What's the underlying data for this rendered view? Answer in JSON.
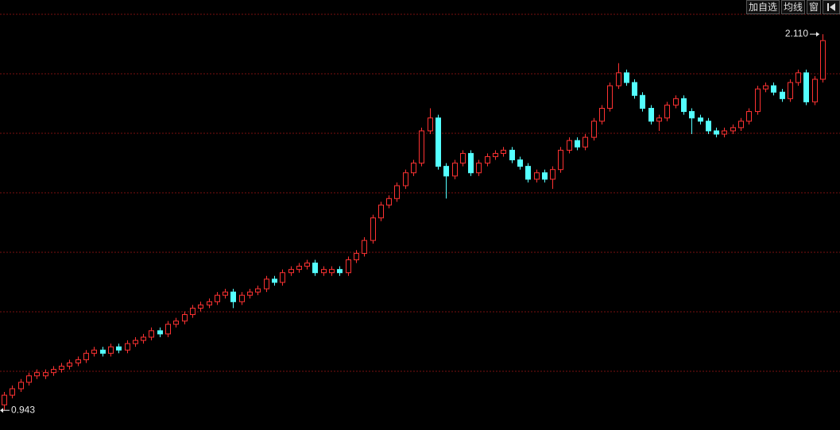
{
  "toolbar": {
    "add_watchlist": "加自选",
    "moving_average": "均线",
    "window": "窗"
  },
  "chart_data": {
    "type": "candlestick",
    "grid": true,
    "up_color": "#ff3232",
    "down_color": "#54ffff",
    "ylim": [
      0.882,
      2.216
    ],
    "max": {
      "value": 2.11,
      "label": "2.110"
    },
    "min": {
      "value": 0.943,
      "label": "0.943"
    },
    "open": [
      0.96,
      0.99,
      1.01,
      1.03,
      1.05,
      1.05,
      1.06,
      1.07,
      1.08,
      1.09,
      1.1,
      1.12,
      1.13,
      1.12,
      1.14,
      1.13,
      1.15,
      1.16,
      1.17,
      1.19,
      1.18,
      1.21,
      1.22,
      1.24,
      1.26,
      1.27,
      1.28,
      1.3,
      1.31,
      1.28,
      1.3,
      1.31,
      1.32,
      1.35,
      1.34,
      1.37,
      1.38,
      1.39,
      1.4,
      1.37,
      1.37,
      1.38,
      1.37,
      1.41,
      1.43,
      1.47,
      1.54,
      1.58,
      1.6,
      1.64,
      1.68,
      1.71,
      1.81,
      1.85,
      1.7,
      1.67,
      1.71,
      1.74,
      1.68,
      1.71,
      1.73,
      1.74,
      1.75,
      1.72,
      1.7,
      1.66,
      1.68,
      1.66,
      1.69,
      1.75,
      1.78,
      1.76,
      1.79,
      1.84,
      1.88,
      1.95,
      1.99,
      1.96,
      1.92,
      1.88,
      1.84,
      1.85,
      1.89,
      1.91,
      1.87,
      1.85,
      1.84,
      1.81,
      1.8,
      1.81,
      1.82,
      1.84,
      1.87,
      1.94,
      1.95,
      1.93,
      1.91,
      1.96,
      1.99,
      1.9,
      1.97
    ],
    "high": [
      1.0,
      1.02,
      1.04,
      1.06,
      1.07,
      1.07,
      1.08,
      1.09,
      1.1,
      1.11,
      1.13,
      1.14,
      1.14,
      1.15,
      1.15,
      1.16,
      1.17,
      1.18,
      1.2,
      1.2,
      1.22,
      1.23,
      1.25,
      1.27,
      1.28,
      1.29,
      1.31,
      1.32,
      1.32,
      1.31,
      1.32,
      1.33,
      1.36,
      1.36,
      1.38,
      1.39,
      1.4,
      1.41,
      1.41,
      1.39,
      1.39,
      1.39,
      1.42,
      1.44,
      1.48,
      1.55,
      1.59,
      1.61,
      1.65,
      1.69,
      1.72,
      1.82,
      1.88,
      1.86,
      1.71,
      1.72,
      1.75,
      1.75,
      1.72,
      1.74,
      1.75,
      1.76,
      1.76,
      1.73,
      1.71,
      1.69,
      1.69,
      1.7,
      1.76,
      1.79,
      1.79,
      1.8,
      1.85,
      1.89,
      1.96,
      2.02,
      2.0,
      1.97,
      1.93,
      1.89,
      1.86,
      1.9,
      1.92,
      1.92,
      1.88,
      1.86,
      1.85,
      1.82,
      1.82,
      1.83,
      1.85,
      1.88,
      1.95,
      1.96,
      1.96,
      1.94,
      1.97,
      2.0,
      2.0,
      1.98,
      2.11
    ],
    "low": [
      0.943,
      0.98,
      1.0,
      1.02,
      1.04,
      1.04,
      1.05,
      1.06,
      1.07,
      1.08,
      1.09,
      1.11,
      1.11,
      1.11,
      1.12,
      1.12,
      1.14,
      1.15,
      1.16,
      1.17,
      1.17,
      1.2,
      1.21,
      1.23,
      1.25,
      1.26,
      1.27,
      1.29,
      1.26,
      1.27,
      1.29,
      1.3,
      1.31,
      1.33,
      1.33,
      1.36,
      1.37,
      1.38,
      1.36,
      1.36,
      1.36,
      1.36,
      1.36,
      1.4,
      1.42,
      1.46,
      1.53,
      1.57,
      1.59,
      1.63,
      1.67,
      1.7,
      1.8,
      1.69,
      1.6,
      1.66,
      1.7,
      1.67,
      1.67,
      1.7,
      1.72,
      1.73,
      1.71,
      1.69,
      1.65,
      1.65,
      1.65,
      1.63,
      1.68,
      1.74,
      1.75,
      1.75,
      1.78,
      1.83,
      1.87,
      1.94,
      1.95,
      1.91,
      1.87,
      1.83,
      1.81,
      1.84,
      1.88,
      1.86,
      1.8,
      1.83,
      1.8,
      1.79,
      1.79,
      1.8,
      1.81,
      1.83,
      1.86,
      1.93,
      1.92,
      1.9,
      1.9,
      1.95,
      1.89,
      1.89,
      1.96
    ],
    "close": [
      0.99,
      1.01,
      1.03,
      1.05,
      1.06,
      1.06,
      1.07,
      1.08,
      1.09,
      1.1,
      1.12,
      1.13,
      1.12,
      1.14,
      1.13,
      1.15,
      1.16,
      1.17,
      1.19,
      1.18,
      1.21,
      1.22,
      1.24,
      1.26,
      1.27,
      1.28,
      1.3,
      1.31,
      1.28,
      1.3,
      1.31,
      1.32,
      1.35,
      1.34,
      1.37,
      1.38,
      1.39,
      1.4,
      1.37,
      1.38,
      1.38,
      1.37,
      1.41,
      1.43,
      1.47,
      1.54,
      1.58,
      1.6,
      1.64,
      1.68,
      1.71,
      1.81,
      1.85,
      1.7,
      1.67,
      1.71,
      1.74,
      1.68,
      1.71,
      1.73,
      1.74,
      1.75,
      1.72,
      1.7,
      1.66,
      1.68,
      1.66,
      1.69,
      1.75,
      1.78,
      1.76,
      1.79,
      1.84,
      1.88,
      1.95,
      1.99,
      1.96,
      1.92,
      1.88,
      1.84,
      1.85,
      1.89,
      1.91,
      1.87,
      1.85,
      1.84,
      1.81,
      1.8,
      1.81,
      1.82,
      1.84,
      1.87,
      1.94,
      1.95,
      1.93,
      1.91,
      1.96,
      1.99,
      1.9,
      1.97,
      2.09
    ]
  }
}
